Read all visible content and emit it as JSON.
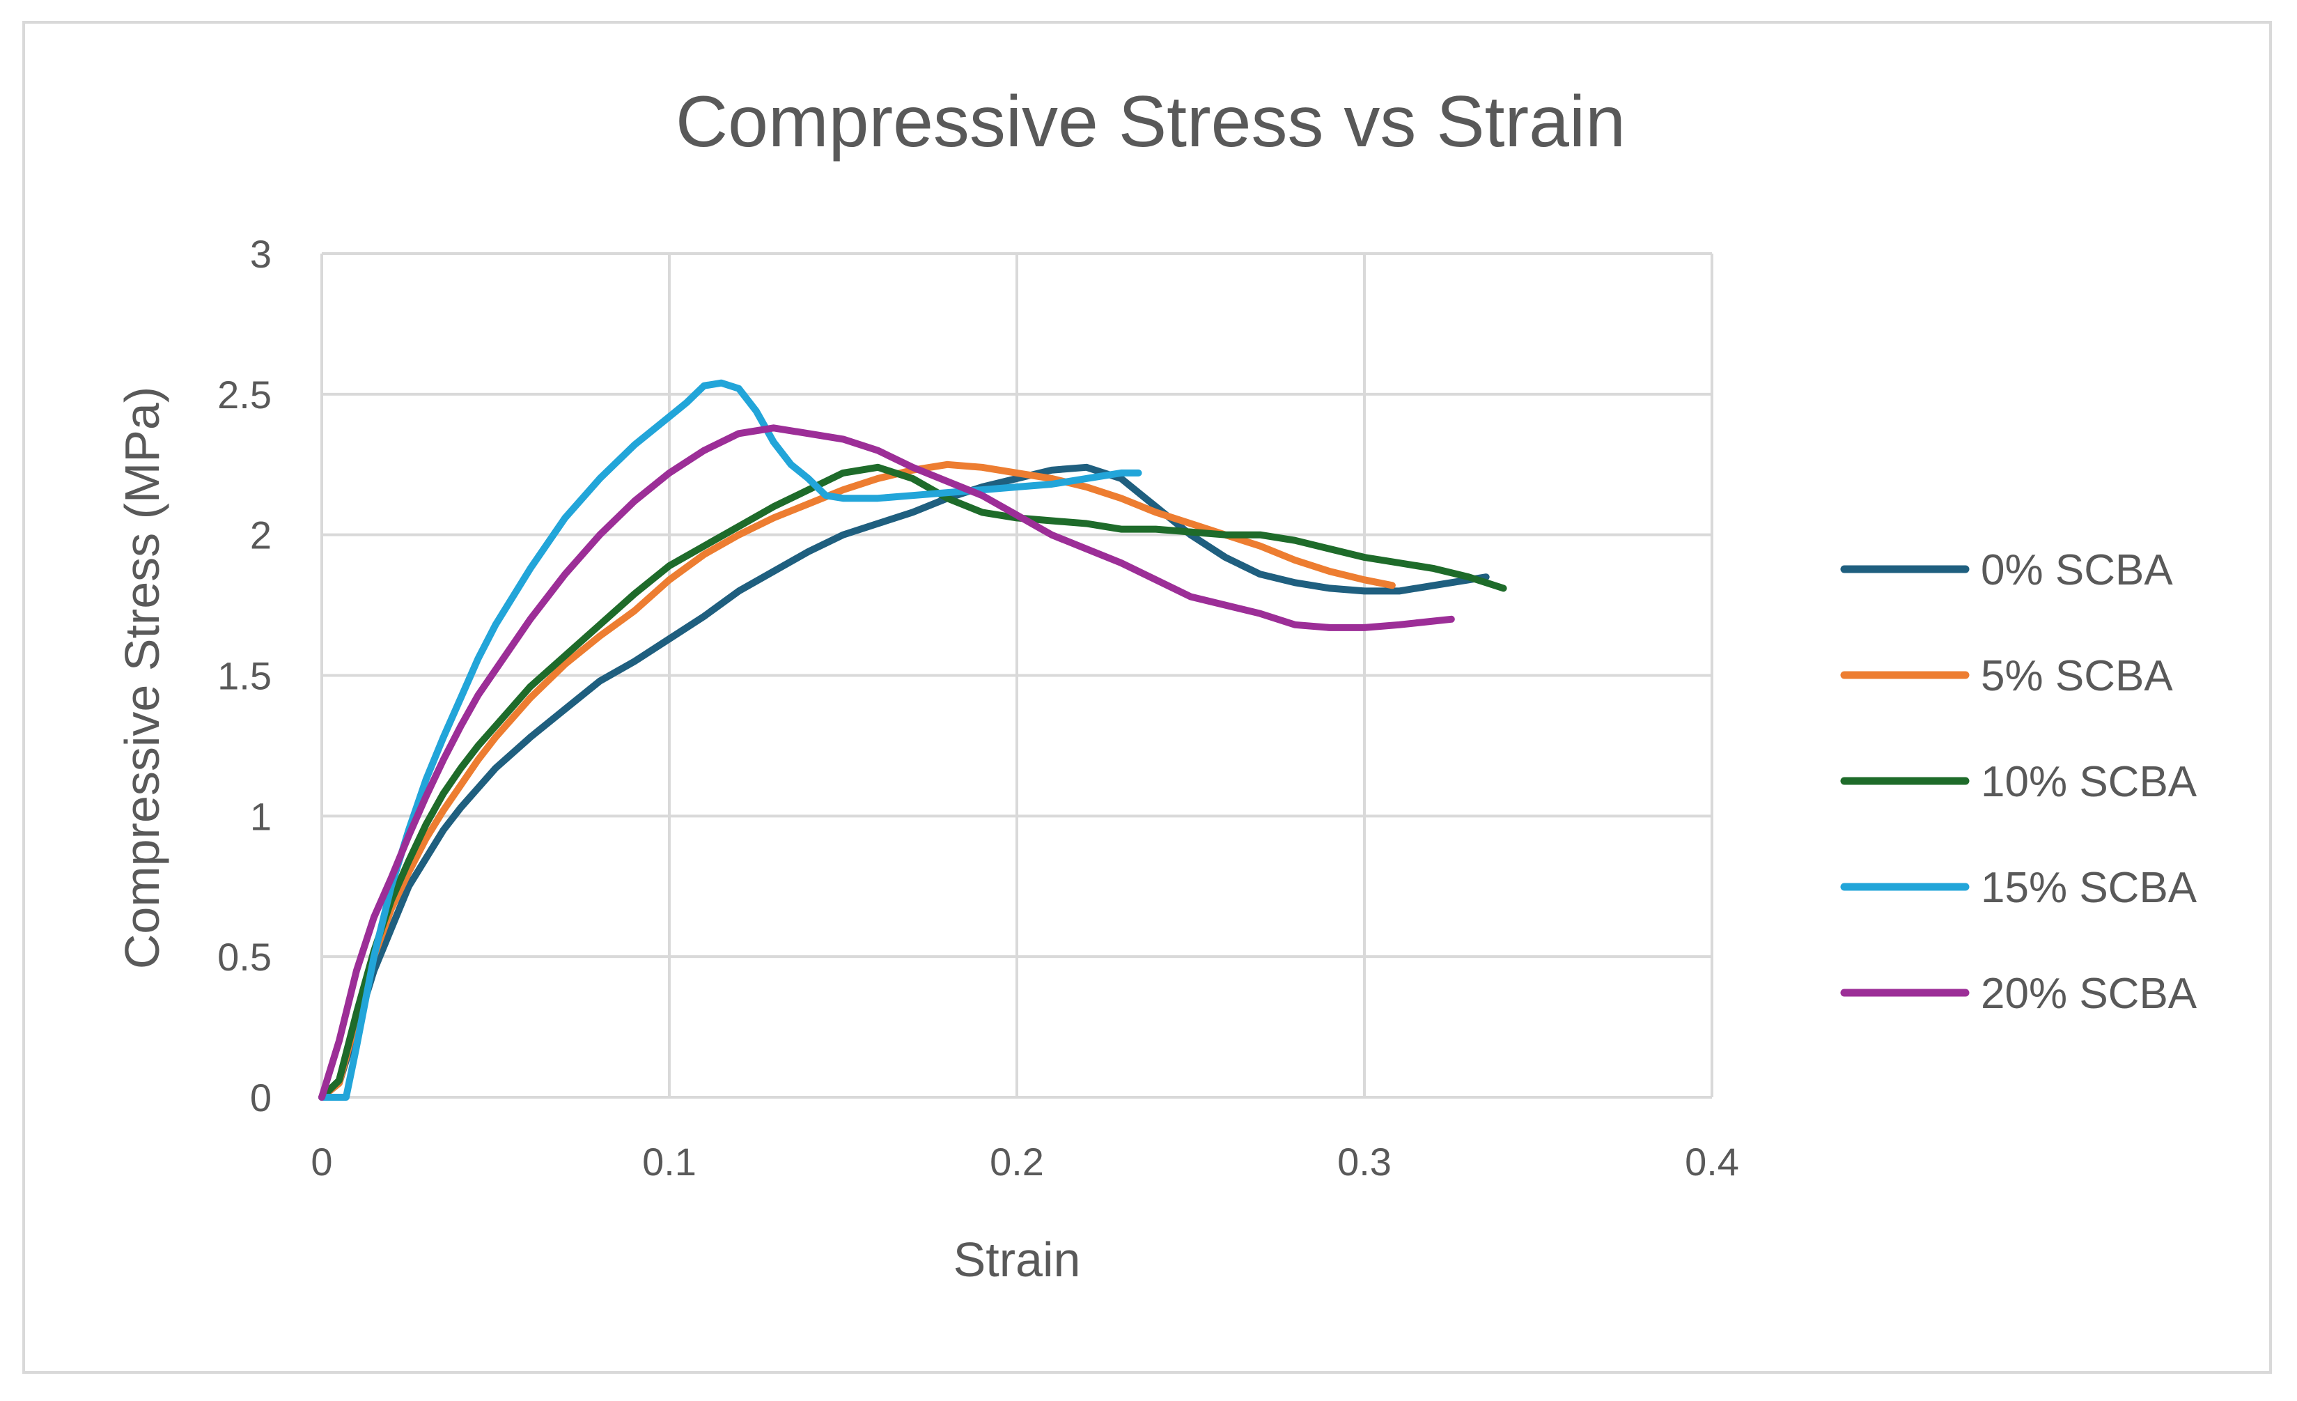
{
  "chart_data": {
    "type": "line",
    "title": "Compressive Stress vs Strain",
    "xlabel": "Strain",
    "ylabel": "Compressive Stress (MPa)",
    "xlim": [
      0,
      0.4
    ],
    "ylim": [
      0,
      3
    ],
    "xticks": [
      0,
      0.1,
      0.2,
      0.3,
      0.4
    ],
    "xtick_labels": [
      "0",
      "0.1",
      "0.2",
      "0.3",
      "0.4"
    ],
    "yticks": [
      0,
      0.5,
      1,
      1.5,
      2,
      2.5,
      3
    ],
    "ytick_labels": [
      "0",
      "0.5",
      "1",
      "1.5",
      "2",
      "2.5",
      "3"
    ],
    "grid": true,
    "legend_position": "right",
    "series": [
      {
        "name": "0% SCBA",
        "color": "#1f5f7f",
        "points": [
          [
            0,
            0
          ],
          [
            0.005,
            0.05
          ],
          [
            0.01,
            0.25
          ],
          [
            0.015,
            0.45
          ],
          [
            0.02,
            0.6
          ],
          [
            0.025,
            0.75
          ],
          [
            0.03,
            0.85
          ],
          [
            0.035,
            0.95
          ],
          [
            0.04,
            1.03
          ],
          [
            0.045,
            1.1
          ],
          [
            0.05,
            1.17
          ],
          [
            0.06,
            1.28
          ],
          [
            0.07,
            1.38
          ],
          [
            0.08,
            1.48
          ],
          [
            0.09,
            1.55
          ],
          [
            0.1,
            1.63
          ],
          [
            0.11,
            1.71
          ],
          [
            0.12,
            1.8
          ],
          [
            0.13,
            1.87
          ],
          [
            0.14,
            1.94
          ],
          [
            0.15,
            2.0
          ],
          [
            0.16,
            2.04
          ],
          [
            0.17,
            2.08
          ],
          [
            0.18,
            2.13
          ],
          [
            0.19,
            2.17
          ],
          [
            0.2,
            2.2
          ],
          [
            0.21,
            2.23
          ],
          [
            0.22,
            2.24
          ],
          [
            0.23,
            2.2
          ],
          [
            0.24,
            2.1
          ],
          [
            0.25,
            2.0
          ],
          [
            0.26,
            1.92
          ],
          [
            0.27,
            1.86
          ],
          [
            0.28,
            1.83
          ],
          [
            0.29,
            1.81
          ],
          [
            0.3,
            1.8
          ],
          [
            0.31,
            1.8
          ],
          [
            0.32,
            1.82
          ],
          [
            0.33,
            1.84
          ],
          [
            0.335,
            1.85
          ]
        ]
      },
      {
        "name": "5% SCBA",
        "color": "#ed7d31",
        "points": [
          [
            0,
            0
          ],
          [
            0.005,
            0.05
          ],
          [
            0.01,
            0.28
          ],
          [
            0.015,
            0.5
          ],
          [
            0.02,
            0.67
          ],
          [
            0.025,
            0.8
          ],
          [
            0.03,
            0.92
          ],
          [
            0.035,
            1.02
          ],
          [
            0.04,
            1.11
          ],
          [
            0.045,
            1.2
          ],
          [
            0.05,
            1.28
          ],
          [
            0.06,
            1.42
          ],
          [
            0.07,
            1.54
          ],
          [
            0.08,
            1.64
          ],
          [
            0.09,
            1.73
          ],
          [
            0.1,
            1.84
          ],
          [
            0.11,
            1.93
          ],
          [
            0.12,
            2.0
          ],
          [
            0.13,
            2.06
          ],
          [
            0.14,
            2.11
          ],
          [
            0.15,
            2.16
          ],
          [
            0.16,
            2.2
          ],
          [
            0.17,
            2.23
          ],
          [
            0.18,
            2.25
          ],
          [
            0.19,
            2.24
          ],
          [
            0.2,
            2.22
          ],
          [
            0.21,
            2.2
          ],
          [
            0.22,
            2.17
          ],
          [
            0.23,
            2.13
          ],
          [
            0.24,
            2.08
          ],
          [
            0.25,
            2.04
          ],
          [
            0.26,
            2.0
          ],
          [
            0.27,
            1.96
          ],
          [
            0.28,
            1.91
          ],
          [
            0.29,
            1.87
          ],
          [
            0.3,
            1.84
          ],
          [
            0.308,
            1.82
          ]
        ]
      },
      {
        "name": "10% SCBA",
        "color": "#1e6b2a",
        "points": [
          [
            0,
            0
          ],
          [
            0.005,
            0.06
          ],
          [
            0.01,
            0.3
          ],
          [
            0.015,
            0.52
          ],
          [
            0.02,
            0.7
          ],
          [
            0.025,
            0.84
          ],
          [
            0.03,
            0.97
          ],
          [
            0.035,
            1.08
          ],
          [
            0.04,
            1.17
          ],
          [
            0.045,
            1.25
          ],
          [
            0.05,
            1.32
          ],
          [
            0.06,
            1.46
          ],
          [
            0.07,
            1.57
          ],
          [
            0.08,
            1.68
          ],
          [
            0.09,
            1.79
          ],
          [
            0.1,
            1.89
          ],
          [
            0.11,
            1.96
          ],
          [
            0.12,
            2.03
          ],
          [
            0.13,
            2.1
          ],
          [
            0.14,
            2.16
          ],
          [
            0.15,
            2.22
          ],
          [
            0.16,
            2.24
          ],
          [
            0.17,
            2.2
          ],
          [
            0.18,
            2.13
          ],
          [
            0.19,
            2.08
          ],
          [
            0.2,
            2.06
          ],
          [
            0.21,
            2.05
          ],
          [
            0.22,
            2.04
          ],
          [
            0.23,
            2.02
          ],
          [
            0.24,
            2.02
          ],
          [
            0.25,
            2.01
          ],
          [
            0.26,
            2.0
          ],
          [
            0.27,
            2.0
          ],
          [
            0.28,
            1.98
          ],
          [
            0.29,
            1.95
          ],
          [
            0.3,
            1.92
          ],
          [
            0.31,
            1.9
          ],
          [
            0.32,
            1.88
          ],
          [
            0.33,
            1.85
          ],
          [
            0.34,
            1.81
          ]
        ]
      },
      {
        "name": "15% SCBA",
        "color": "#22a5d9",
        "points": [
          [
            0,
            0
          ],
          [
            0.007,
            0.0
          ],
          [
            0.01,
            0.18
          ],
          [
            0.015,
            0.5
          ],
          [
            0.02,
            0.75
          ],
          [
            0.025,
            0.95
          ],
          [
            0.03,
            1.13
          ],
          [
            0.035,
            1.28
          ],
          [
            0.04,
            1.42
          ],
          [
            0.045,
            1.56
          ],
          [
            0.05,
            1.68
          ],
          [
            0.06,
            1.88
          ],
          [
            0.07,
            2.06
          ],
          [
            0.08,
            2.2
          ],
          [
            0.09,
            2.32
          ],
          [
            0.1,
            2.42
          ],
          [
            0.105,
            2.47
          ],
          [
            0.11,
            2.53
          ],
          [
            0.115,
            2.54
          ],
          [
            0.12,
            2.52
          ],
          [
            0.125,
            2.44
          ],
          [
            0.13,
            2.33
          ],
          [
            0.135,
            2.25
          ],
          [
            0.14,
            2.2
          ],
          [
            0.145,
            2.14
          ],
          [
            0.15,
            2.13
          ],
          [
            0.16,
            2.13
          ],
          [
            0.17,
            2.14
          ],
          [
            0.18,
            2.15
          ],
          [
            0.19,
            2.16
          ],
          [
            0.2,
            2.17
          ],
          [
            0.21,
            2.18
          ],
          [
            0.22,
            2.2
          ],
          [
            0.23,
            2.22
          ],
          [
            0.235,
            2.22
          ]
        ]
      },
      {
        "name": "20% SCBA",
        "color": "#9c2e97",
        "points": [
          [
            0,
            0
          ],
          [
            0.005,
            0.2
          ],
          [
            0.01,
            0.45
          ],
          [
            0.015,
            0.64
          ],
          [
            0.02,
            0.78
          ],
          [
            0.025,
            0.93
          ],
          [
            0.03,
            1.07
          ],
          [
            0.035,
            1.2
          ],
          [
            0.04,
            1.32
          ],
          [
            0.045,
            1.43
          ],
          [
            0.05,
            1.52
          ],
          [
            0.06,
            1.7
          ],
          [
            0.07,
            1.86
          ],
          [
            0.08,
            2.0
          ],
          [
            0.09,
            2.12
          ],
          [
            0.1,
            2.22
          ],
          [
            0.11,
            2.3
          ],
          [
            0.12,
            2.36
          ],
          [
            0.13,
            2.38
          ],
          [
            0.14,
            2.36
          ],
          [
            0.15,
            2.34
          ],
          [
            0.16,
            2.3
          ],
          [
            0.17,
            2.24
          ],
          [
            0.18,
            2.19
          ],
          [
            0.19,
            2.14
          ],
          [
            0.2,
            2.07
          ],
          [
            0.21,
            2.0
          ],
          [
            0.22,
            1.95
          ],
          [
            0.23,
            1.9
          ],
          [
            0.24,
            1.84
          ],
          [
            0.25,
            1.78
          ],
          [
            0.26,
            1.75
          ],
          [
            0.27,
            1.72
          ],
          [
            0.28,
            1.68
          ],
          [
            0.29,
            1.67
          ],
          [
            0.3,
            1.67
          ],
          [
            0.31,
            1.68
          ],
          [
            0.325,
            1.7
          ]
        ]
      }
    ]
  }
}
